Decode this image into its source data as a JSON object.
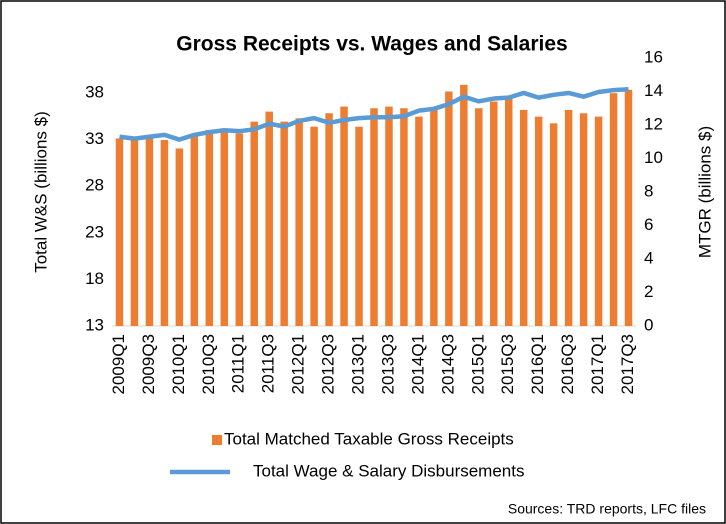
{
  "chart_data": {
    "type": "combo",
    "title": "Gross Receipts vs. Wages and Salaries",
    "y_label": "Total W&S (billions $)",
    "y2_label": "MTGR (billions $)",
    "source": "Sources: TRD reports, LFC files",
    "categories": [
      "2009Q1",
      null,
      "2009Q3",
      null,
      "2010Q1",
      null,
      "2010Q3",
      null,
      "2011Q1",
      null,
      "2011Q3",
      null,
      "2012Q1",
      null,
      "2012Q3",
      null,
      "2013Q1",
      null,
      "2013Q3",
      null,
      "2014Q1",
      null,
      "2014Q3",
      null,
      "2015Q1",
      null,
      "2015Q3",
      null,
      "2016Q1",
      null,
      "2016Q3",
      null,
      "2017Q1",
      null,
      "2017Q3"
    ],
    "series": [
      {
        "name": "Total Matched Taxable Gross Receipts",
        "type": "bar",
        "axis": "y2",
        "color": "#ed7d31",
        "values": [
          11.2,
          11.1,
          11.2,
          11.1,
          10.6,
          11.4,
          11.7,
          11.8,
          11.5,
          12.2,
          12.8,
          12.2,
          12.4,
          11.9,
          12.7,
          13.1,
          11.9,
          13.0,
          13.1,
          13.0,
          12.5,
          12.9,
          14.0,
          14.4,
          13.0,
          13.4,
          13.6,
          12.9,
          12.5,
          12.1,
          12.9,
          12.7,
          12.5,
          13.9,
          14.1
        ]
      },
      {
        "name": "Total Wage & Salary Disbursements",
        "type": "line",
        "axis": "y",
        "color": "#5b9bd5",
        "values": [
          33.3,
          33.1,
          33.3,
          33.5,
          33.0,
          33.5,
          33.8,
          34.0,
          33.9,
          34.1,
          34.7,
          34.4,
          35.0,
          35.3,
          34.8,
          35.1,
          35.3,
          35.4,
          35.4,
          35.5,
          36.1,
          36.3,
          36.8,
          37.6,
          37.1,
          37.4,
          37.5,
          38.0,
          37.5,
          37.8,
          38.0,
          37.6,
          38.1,
          38.3,
          38.4
        ]
      }
    ],
    "ylim": [
      13,
      41.75
    ],
    "yticks": [
      13,
      18,
      23,
      28,
      33,
      38
    ],
    "y2lim": [
      0,
      16
    ],
    "y2ticks": [
      0,
      2,
      4,
      6,
      8,
      10,
      12,
      14,
      16
    ],
    "grid": false,
    "legend": "bottom"
  }
}
